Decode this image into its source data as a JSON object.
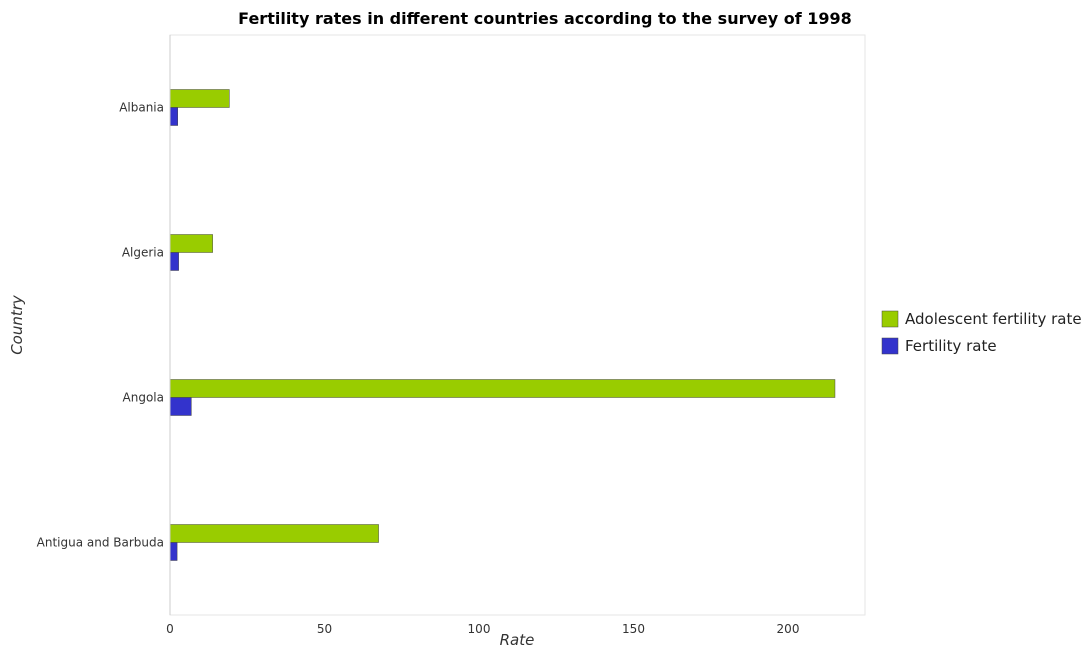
{
  "chart_data": {
    "type": "bar",
    "orientation": "horizontal",
    "title": "Fertility rates in different countries according to the survey of 1998",
    "xlabel": "Rate",
    "ylabel": "Country",
    "categories": [
      "Albania",
      "Algeria",
      "Angola",
      "Antigua and Barbuda"
    ],
    "series": [
      {
        "name": "Adolescent fertility rate",
        "color": "#99cc00",
        "values": [
          19.2,
          13.8,
          215.2,
          67.5
        ]
      },
      {
        "name": "Fertility rate",
        "color": "#3333cc",
        "values": [
          2.5,
          2.8,
          6.9,
          2.3
        ]
      }
    ],
    "xlim": [
      0,
      225
    ],
    "xticks": [
      0,
      50,
      100,
      150,
      200
    ],
    "grid": false,
    "legend": "right"
  }
}
